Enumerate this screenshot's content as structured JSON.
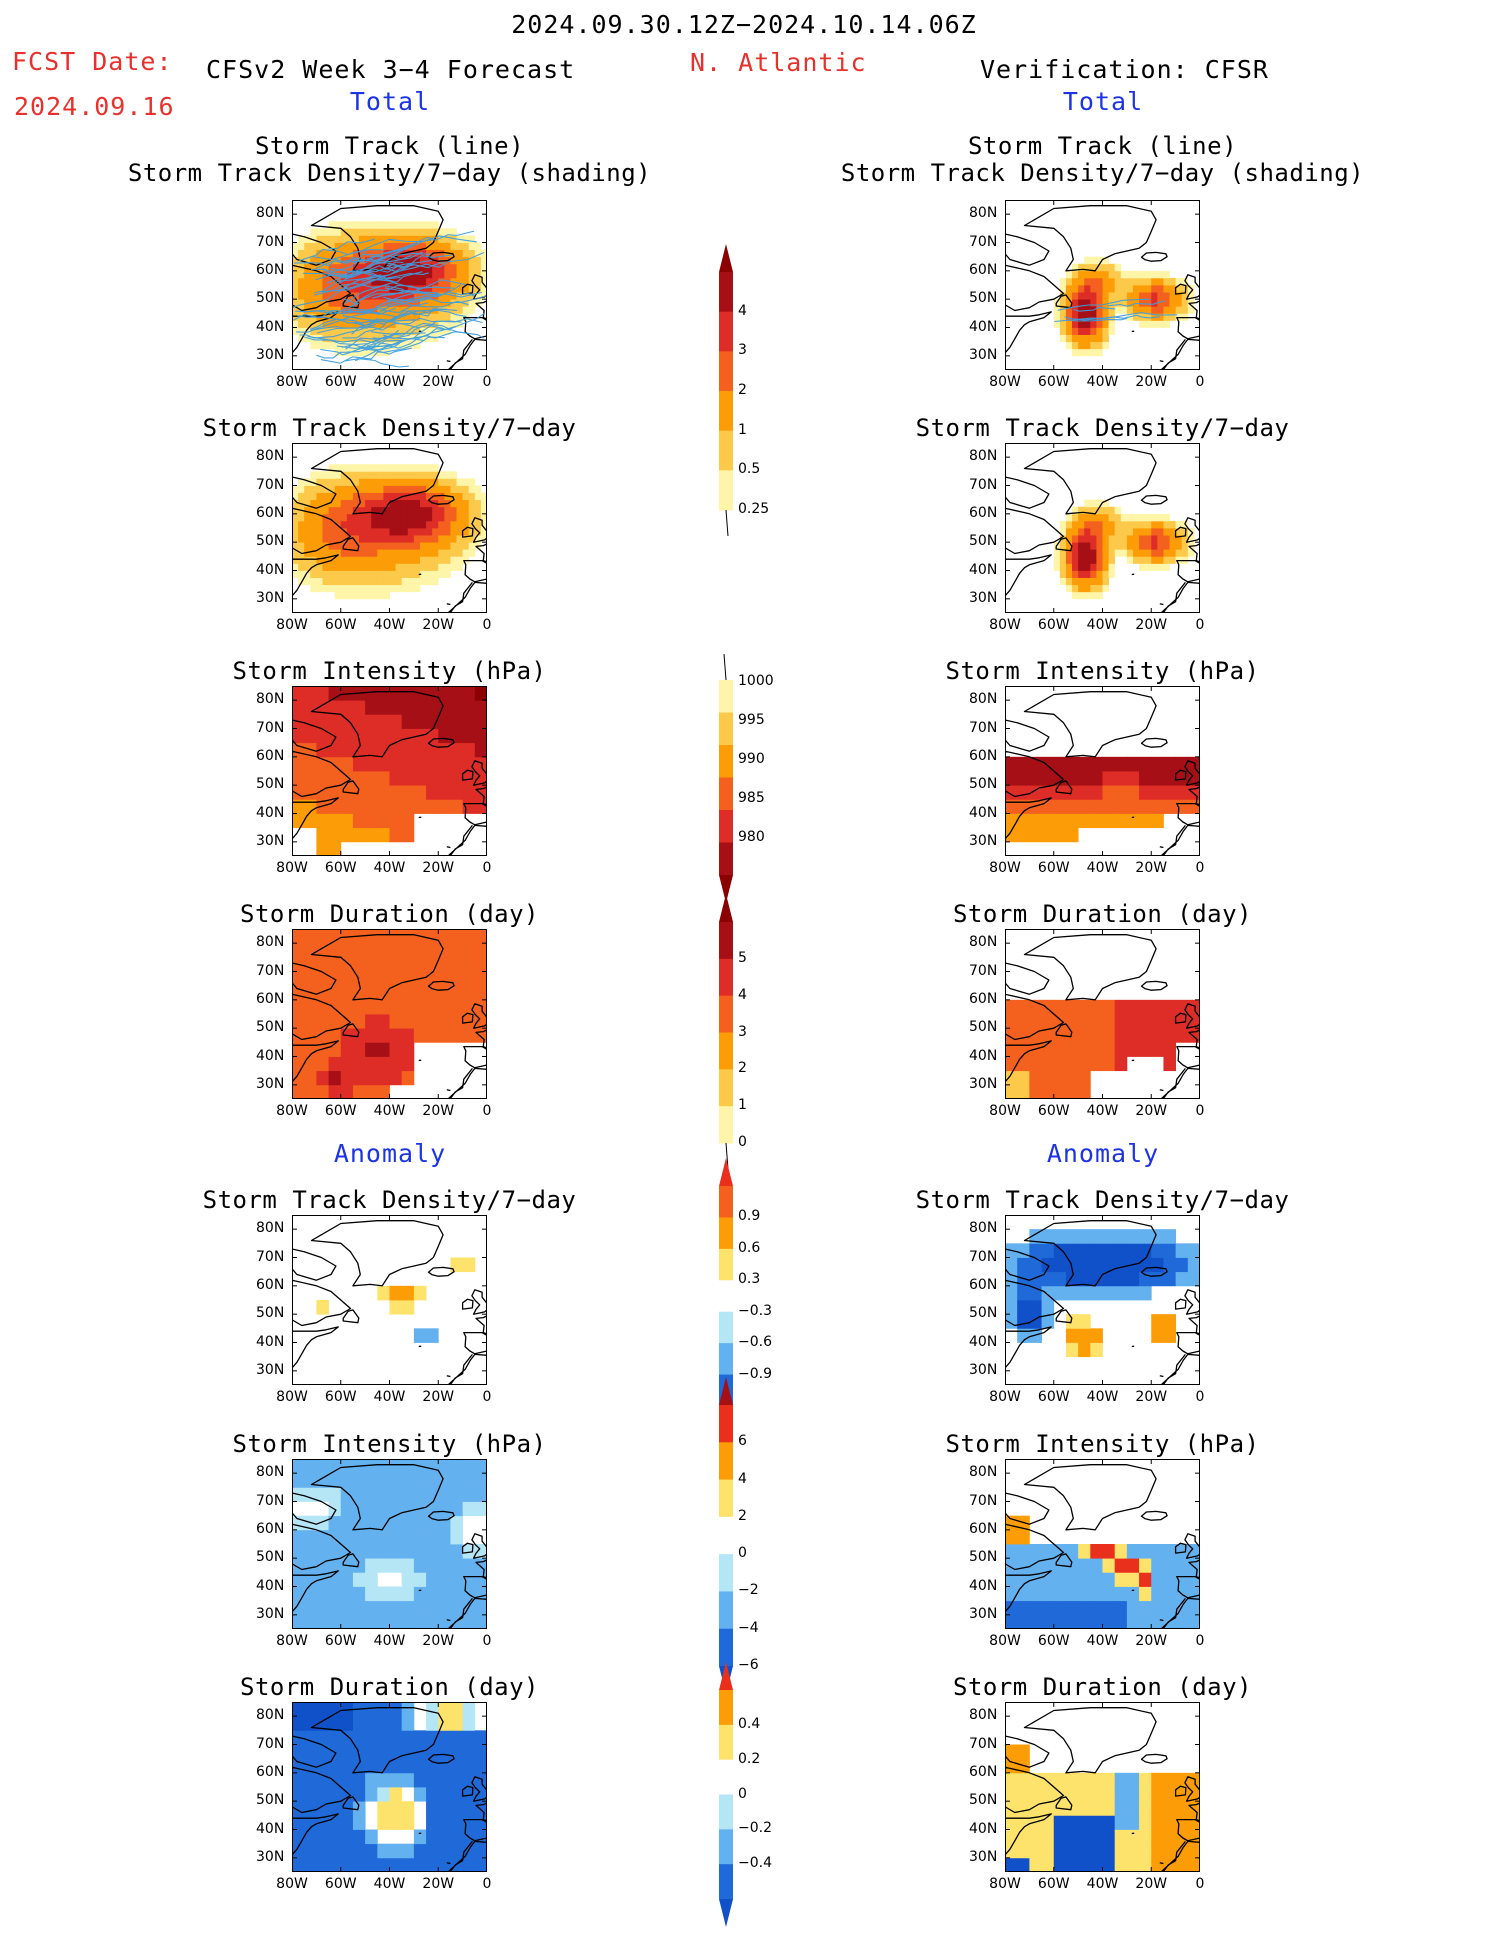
{
  "header": {
    "period": "2024.09.30.12Z−2024.10.14.06Z",
    "fcst_label": "FCST Date:",
    "fcst_date": "2024.09.16",
    "model": "CFSv2 Week 3−4 Forecast",
    "region": "N. Atlantic",
    "verification": "Verification: CFSR",
    "left_total": "Total",
    "right_total": "Total",
    "left_anomaly": "Anomaly",
    "right_anomaly": "Anomaly"
  },
  "axes": {
    "lat_ticks": [
      "80N",
      "70N",
      "60N",
      "50N",
      "40N",
      "30N"
    ],
    "lon_ticks": [
      "80W",
      "60W",
      "40W",
      "20W",
      "0"
    ]
  },
  "panels": [
    {
      "id": "fc-track",
      "title": "Storm Track (line)\nStorm Track Density/7−day (shading)",
      "field": "track",
      "scale": "density",
      "source": "forecast"
    },
    {
      "id": "vf-track",
      "title": "Storm Track (line)\nStorm Track Density/7−day (shading)",
      "field": "track",
      "scale": "density",
      "source": "verification"
    },
    {
      "id": "fc-density",
      "title": "Storm Track Density/7−day",
      "field": "density",
      "scale": "density",
      "source": "forecast"
    },
    {
      "id": "vf-density",
      "title": "Storm Track Density/7−day",
      "field": "density",
      "scale": "density",
      "source": "verification"
    },
    {
      "id": "fc-intensity",
      "title": "Storm Intensity (hPa)",
      "field": "intensity",
      "scale": "intensity",
      "source": "forecast"
    },
    {
      "id": "vf-intensity",
      "title": "Storm Intensity (hPa)",
      "field": "intensity",
      "scale": "intensity",
      "source": "verification"
    },
    {
      "id": "fc-duration",
      "title": "Storm Duration (day)",
      "field": "duration",
      "scale": "duration",
      "source": "forecast"
    },
    {
      "id": "vf-duration",
      "title": "Storm Duration (day)",
      "field": "duration",
      "scale": "duration",
      "source": "verification"
    },
    {
      "id": "fc-density-anom",
      "title": "Storm Track Density/7−day",
      "field": "density_anom",
      "scale": "density_anom",
      "source": "forecast"
    },
    {
      "id": "vf-density-anom",
      "title": "Storm Track Density/7−day",
      "field": "density_anom",
      "scale": "density_anom",
      "source": "verification"
    },
    {
      "id": "fc-intensity-anom",
      "title": "Storm Intensity (hPa)",
      "field": "intensity_anom",
      "scale": "intensity_anom",
      "source": "forecast"
    },
    {
      "id": "vf-intensity-anom",
      "title": "Storm Intensity (hPa)",
      "field": "intensity_anom",
      "scale": "intensity_anom",
      "source": "verification"
    },
    {
      "id": "fc-duration-anom",
      "title": "Storm Duration (day)",
      "field": "duration_anom",
      "scale": "duration_anom",
      "source": "forecast"
    },
    {
      "id": "vf-duration-anom",
      "title": "Storm Duration (day)",
      "field": "duration_anom",
      "scale": "duration_anom",
      "source": "verification"
    }
  ],
  "colorbars": [
    {
      "id": "density",
      "labels": [
        "4",
        "3",
        "2",
        "1",
        "0.5",
        "0.25"
      ],
      "colors": [
        "#a50f15",
        "#de2d26",
        "#f4611f",
        "#fc9c06",
        "#fcc94a",
        "#fff5a8"
      ],
      "tip_top": "#8b0000",
      "tip_bottom": null
    },
    {
      "id": "intensity",
      "labels": [
        "1000",
        "995",
        "990",
        "985",
        "980"
      ],
      "colors": [
        "#fff5a8",
        "#fcc94a",
        "#fc9c06",
        "#f4611f",
        "#de2d26",
        "#a50f15"
      ],
      "tip_top": null,
      "tip_bottom": "#8b0000"
    },
    {
      "id": "duration",
      "labels": [
        "5",
        "4",
        "3",
        "2",
        "1",
        "0"
      ],
      "colors": [
        "#a50f15",
        "#de2d26",
        "#f4611f",
        "#fc9c06",
        "#fcc94a",
        "#fff5a8"
      ],
      "tip_top": "#8b0000",
      "tip_bottom": null
    },
    {
      "id": "density_anom",
      "labels": [
        "0.9",
        "0.6",
        "0.3",
        "−0.3",
        "−0.6",
        "−0.9"
      ],
      "colors": [
        "#f4611f",
        "#fc9c06",
        "#fde36b",
        "#ffffff",
        "#b5e6f5",
        "#64b1ef",
        "#1f6ad8"
      ],
      "tip_top": "#e8301c",
      "tip_bottom": "#1050c8"
    },
    {
      "id": "intensity_anom",
      "labels": [
        "6",
        "4",
        "2",
        "0",
        "−2",
        "−4",
        "−6"
      ],
      "colors": [
        "#e8301c",
        "#fc9c06",
        "#fde36b",
        "#ffffff",
        "#b5e6f5",
        "#64b1ef",
        "#1f6ad8"
      ],
      "tip_top": "#a50f15",
      "tip_bottom": "#1050c8"
    },
    {
      "id": "duration_anom",
      "labels": [
        "0.4",
        "0.2",
        "0",
        "−0.2",
        "−0.4"
      ],
      "colors": [
        "#fc9c06",
        "#fde36b",
        "#ffffff",
        "#b5e6f5",
        "#64b1ef",
        "#1f6ad8"
      ],
      "tip_top": "#e8301c",
      "tip_bottom": "#1050c8"
    }
  ],
  "colors": {
    "title_red": "#e8302c",
    "title_blue": "#1d33e6",
    "track_line": "#3d9fe0"
  }
}
